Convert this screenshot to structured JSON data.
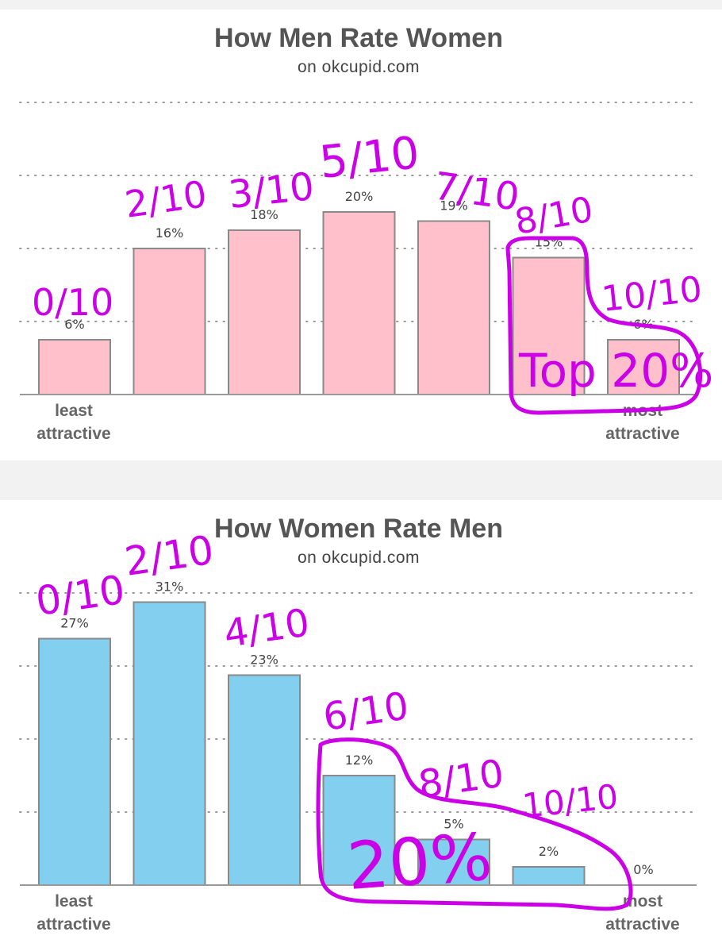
{
  "colors": {
    "women_bars": "#ffc0cb",
    "men_bars": "#82cfef",
    "bar_border": "#8a8a8a",
    "annotation_ink": "#cc00e6"
  },
  "chart_data": [
    {
      "type": "bar",
      "title": "How Men Rate Women",
      "subtitle": "on okcupid.com",
      "categories": [
        "least attractive",
        "",
        "",
        "",
        "",
        "",
        "most attractive"
      ],
      "values": [
        6,
        16,
        18,
        20,
        19,
        15,
        6
      ],
      "value_labels": [
        "6%",
        "16%",
        "18%",
        "20%",
        "19%",
        "15%",
        "6%"
      ],
      "x_label_left": [
        "least",
        "attractive"
      ],
      "x_label_right": [
        "most",
        "attractive"
      ],
      "ylim": [
        0,
        32
      ],
      "grid": true,
      "bar_color": "#ffc0cb"
    },
    {
      "type": "bar",
      "title": "How Women Rate Men",
      "subtitle": "on okcupid.com",
      "categories": [
        "least attractive",
        "",
        "",
        "",
        "",
        "",
        "most attractive"
      ],
      "values": [
        27,
        31,
        23,
        12,
        5,
        2,
        0
      ],
      "value_labels": [
        "27%",
        "31%",
        "23%",
        "12%",
        "5%",
        "2%",
        "0%"
      ],
      "x_label_left": [
        "least",
        "attractive"
      ],
      "x_label_right": [
        "most",
        "attractive"
      ],
      "ylim": [
        0,
        32
      ],
      "grid": true,
      "bar_color": "#82cfef"
    }
  ],
  "annotations": {
    "chart1": [
      "0/10",
      "2/10",
      "3/10",
      "5/10",
      "7/10",
      "8/10",
      "10/10",
      "Top 20%"
    ],
    "chart2": [
      "0/10",
      "2/10",
      "4/10",
      "6/10",
      "8/10",
      "10/10",
      "20%"
    ]
  }
}
